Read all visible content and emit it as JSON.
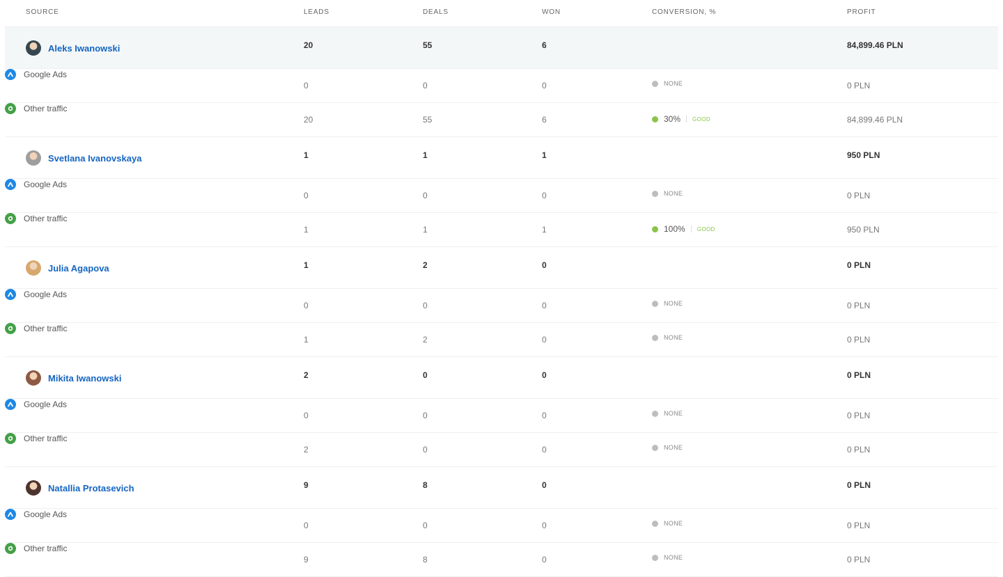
{
  "columns": {
    "source": "SOURCE",
    "leads": "LEADS",
    "deals": "DEALS",
    "won": "WON",
    "conversion": "CONVERSION, %",
    "profit": "PROFIT"
  },
  "colors": {
    "name_link": "#1565c0",
    "good": "#8bc34a",
    "none": "#bdbdbd",
    "google_ads_icon": "#1e88e5",
    "other_traffic_icon": "#43a047",
    "highlight_row": "#f4f7f8"
  },
  "rows": [
    {
      "name": "Aleks Iwanowski",
      "leads": "20",
      "deals": "55",
      "won": "6",
      "profit": "84,899.46 PLN",
      "avatar_color": "#37474f",
      "sources": [
        {
          "label": "Google Ads",
          "icon": "google-ads-icon",
          "leads": "0",
          "deals": "0",
          "won": "0",
          "conv_none": "NONE",
          "profit": "0 PLN"
        },
        {
          "label": "Other traffic",
          "icon": "other-traffic-icon",
          "leads": "20",
          "deals": "55",
          "won": "6",
          "conv_pct": "30%",
          "conv_good": "GOOD",
          "profit": "84,899.46 PLN"
        }
      ]
    },
    {
      "name": "Svetlana Ivanovskaya",
      "leads": "1",
      "deals": "1",
      "won": "1",
      "profit": "950 PLN",
      "avatar_color": "#9e9e9e",
      "sources": [
        {
          "label": "Google Ads",
          "icon": "google-ads-icon",
          "leads": "0",
          "deals": "0",
          "won": "0",
          "conv_none": "NONE",
          "profit": "0 PLN"
        },
        {
          "label": "Other traffic",
          "icon": "other-traffic-icon",
          "leads": "1",
          "deals": "1",
          "won": "1",
          "conv_pct": "100%",
          "conv_good": "GOOD",
          "profit": "950 PLN"
        }
      ]
    },
    {
      "name": "Julia Agapova",
      "leads": "1",
      "deals": "2",
      "won": "0",
      "profit": "0 PLN",
      "avatar_color": "#d7a86e",
      "sources": [
        {
          "label": "Google Ads",
          "icon": "google-ads-icon",
          "leads": "0",
          "deals": "0",
          "won": "0",
          "conv_none": "NONE",
          "profit": "0 PLN"
        },
        {
          "label": "Other traffic",
          "icon": "other-traffic-icon",
          "leads": "1",
          "deals": "2",
          "won": "0",
          "conv_none": "NONE",
          "profit": "0 PLN"
        }
      ]
    },
    {
      "name": "Mikita Iwanowski",
      "leads": "2",
      "deals": "0",
      "won": "0",
      "profit": "0 PLN",
      "avatar_color": "#8d5a44",
      "sources": [
        {
          "label": "Google Ads",
          "icon": "google-ads-icon",
          "leads": "0",
          "deals": "0",
          "won": "0",
          "conv_none": "NONE",
          "profit": "0 PLN"
        },
        {
          "label": "Other traffic",
          "icon": "other-traffic-icon",
          "leads": "2",
          "deals": "0",
          "won": "0",
          "conv_none": "NONE",
          "profit": "0 PLN"
        }
      ]
    },
    {
      "name": "Natallia Protasevich",
      "leads": "9",
      "deals": "8",
      "won": "0",
      "profit": "0 PLN",
      "avatar_color": "#4e342e",
      "sources": [
        {
          "label": "Google Ads",
          "icon": "google-ads-icon",
          "leads": "0",
          "deals": "0",
          "won": "0",
          "conv_none": "NONE",
          "profit": "0 PLN"
        },
        {
          "label": "Other traffic",
          "icon": "other-traffic-icon",
          "leads": "9",
          "deals": "8",
          "won": "0",
          "conv_none": "NONE",
          "profit": "0 PLN"
        }
      ]
    }
  ]
}
